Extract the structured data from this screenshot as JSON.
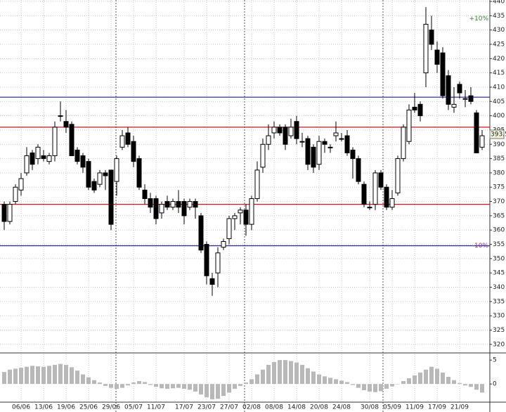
{
  "chart_data": [
    {
      "type": "candlestick",
      "categories": [
        null,
        null,
        null,
        "06/06",
        null,
        null,
        null,
        "13/06",
        null,
        null,
        null,
        "19/06",
        null,
        null,
        null,
        "25/06",
        null,
        null,
        null,
        "29/06",
        null,
        null,
        null,
        "05/07",
        null,
        null,
        null,
        "11/07",
        null,
        null,
        null,
        null,
        "17/07",
        null,
        null,
        null,
        "23/07",
        null,
        null,
        null,
        "27/07",
        null,
        null,
        null,
        "02/08",
        null,
        null,
        null,
        "08/08",
        null,
        null,
        null,
        "14/08",
        null,
        null,
        null,
        "20/08",
        null,
        null,
        null,
        "24/08",
        null,
        null,
        null,
        null,
        "30/08",
        null,
        null,
        null,
        "05/09",
        null,
        null,
        null,
        "11/09",
        null,
        null,
        null,
        "17/09",
        null,
        null,
        null,
        "21/09",
        null,
        null,
        null,
        null
      ],
      "open": [
        369,
        363,
        370,
        374,
        380,
        387,
        385,
        386,
        384,
        386,
        400,
        398,
        397,
        388,
        386,
        384,
        377,
        376,
        380,
        381,
        377,
        389,
        394,
        391,
        385,
        374,
        371,
        371,
        366,
        370,
        368,
        370,
        370,
        368,
        370,
        365,
        355,
        343,
        345,
        354,
        357,
        364,
        366,
        367,
        362,
        371,
        382,
        390,
        394,
        396,
        396,
        393,
        398,
        391,
        392,
        389,
        383,
        391,
        389,
        393,
        392,
        393,
        388,
        385,
        376,
        368,
        369,
        380,
        375,
        368,
        373,
        385,
        391,
        403,
        404,
        415,
        430,
        423,
        422,
        414,
        403,
        411,
        406,
        407,
        401,
        389
      ],
      "high": [
        370,
        370,
        376,
        380,
        389,
        388,
        390,
        388,
        387,
        398,
        405,
        402,
        398,
        389,
        387,
        385,
        378,
        381,
        381,
        381,
        386,
        395,
        396,
        393,
        386,
        376,
        373,
        372,
        370,
        372,
        371,
        374,
        371,
        371,
        371,
        366,
        356,
        345,
        354,
        357,
        365,
        366,
        368,
        369,
        372,
        384,
        392,
        397,
        398,
        397,
        397,
        399,
        400,
        394,
        393,
        390,
        393,
        392,
        390,
        398,
        394,
        395,
        389,
        386,
        377,
        370,
        381,
        381,
        376,
        374,
        386,
        397,
        404,
        408,
        405,
        438,
        435,
        426,
        424,
        416,
        410,
        412,
        409,
        410,
        402,
        395
      ],
      "low": [
        360,
        362,
        369,
        372,
        379,
        381,
        383,
        384,
        383,
        384,
        398,
        394,
        386,
        383,
        380,
        374,
        373,
        375,
        374,
        360,
        372,
        388,
        389,
        382,
        374,
        369,
        366,
        362,
        364,
        367,
        367,
        366,
        362,
        367,
        364,
        352,
        341,
        337,
        340,
        353,
        355,
        360,
        362,
        358,
        360,
        370,
        380,
        388,
        392,
        393,
        388,
        392,
        390,
        389,
        381,
        380,
        381,
        387,
        387,
        391,
        391,
        386,
        378,
        376,
        368,
        367,
        367,
        374,
        367,
        367,
        372,
        384,
        390,
        401,
        398,
        410,
        423,
        415,
        406,
        402,
        401,
        406,
        403,
        404,
        387,
        388
      ],
      "close": [
        363,
        369,
        375,
        378,
        386,
        383,
        389,
        385,
        386,
        396,
        400,
        396,
        386,
        384,
        382,
        375,
        374,
        380,
        379,
        362,
        385,
        393,
        390,
        384,
        375,
        371,
        368,
        364,
        369,
        368,
        370,
        368,
        365,
        370,
        368,
        353,
        344,
        341,
        352,
        356,
        364,
        365,
        367,
        362,
        371,
        381,
        390,
        393,
        396,
        394,
        390,
        396,
        392,
        391,
        383,
        382,
        391,
        390,
        389,
        394,
        392,
        387,
        385,
        377,
        369,
        368,
        380,
        375,
        368,
        371,
        385,
        396,
        402,
        402,
        400,
        432,
        425,
        418,
        407,
        404,
        404,
        408,
        406,
        405,
        387,
        393
      ],
      "ylim": [
        317,
        440.5
      ],
      "yticks": [
        320,
        325,
        330,
        335,
        340,
        345,
        350,
        355,
        360,
        365,
        370,
        375,
        380,
        385,
        390,
        395,
        400,
        405,
        410,
        415,
        420,
        425,
        430,
        435,
        440
      ],
      "grid": true,
      "levels": [
        {
          "value": 406.5,
          "color": "#1a1aa0"
        },
        {
          "value": 396,
          "color": "#c81818"
        },
        {
          "value": 369,
          "color": "#c81818"
        },
        {
          "value": 354.5,
          "color": "#1a1aa0"
        }
      ],
      "annotations": [
        {
          "text": "+10%",
          "y": 434,
          "color": "#2a8a2a"
        },
        {
          "text": "-10%",
          "y": 354.5,
          "color": "#8a2a8a"
        }
      ],
      "last_price": 393.5
    },
    {
      "type": "bar",
      "values": [
        2.5,
        3,
        3.2,
        3.4,
        3.6,
        3.8,
        3.7,
        3.6,
        3.8,
        4,
        4.2,
        4,
        3.5,
        2.8,
        2,
        1.4,
        0.8,
        0.3,
        -0.4,
        -0.8,
        -1,
        -0.8,
        -0.3,
        0.3,
        0.6,
        0.4,
        -0.2,
        -0.6,
        -0.9,
        -1,
        -0.9,
        -0.8,
        -1,
        -1.2,
        -1.6,
        -2.2,
        -2.8,
        -3.2,
        -3.1,
        -2.5,
        -1.8,
        -1,
        -0.4,
        0.3,
        1,
        2,
        3,
        4,
        4.6,
        5,
        5,
        4.8,
        4.5,
        4,
        3.3,
        2.6,
        2,
        1.6,
        1.3,
        1,
        0.7,
        0.4,
        -0.2,
        -0.8,
        -1.3,
        -1.6,
        -1.7,
        -1.5,
        -1,
        -0.5,
        0,
        0.6,
        1.2,
        1.8,
        2.4,
        3,
        3.6,
        3.2,
        2.4,
        1.5,
        0.8,
        0.2,
        -0.3,
        -0.6,
        -1.2,
        -1.8
      ],
      "color": "#b8b8b8",
      "ylim": [
        -3.8,
        6.2
      ],
      "yticks": [
        0,
        5
      ]
    }
  ]
}
